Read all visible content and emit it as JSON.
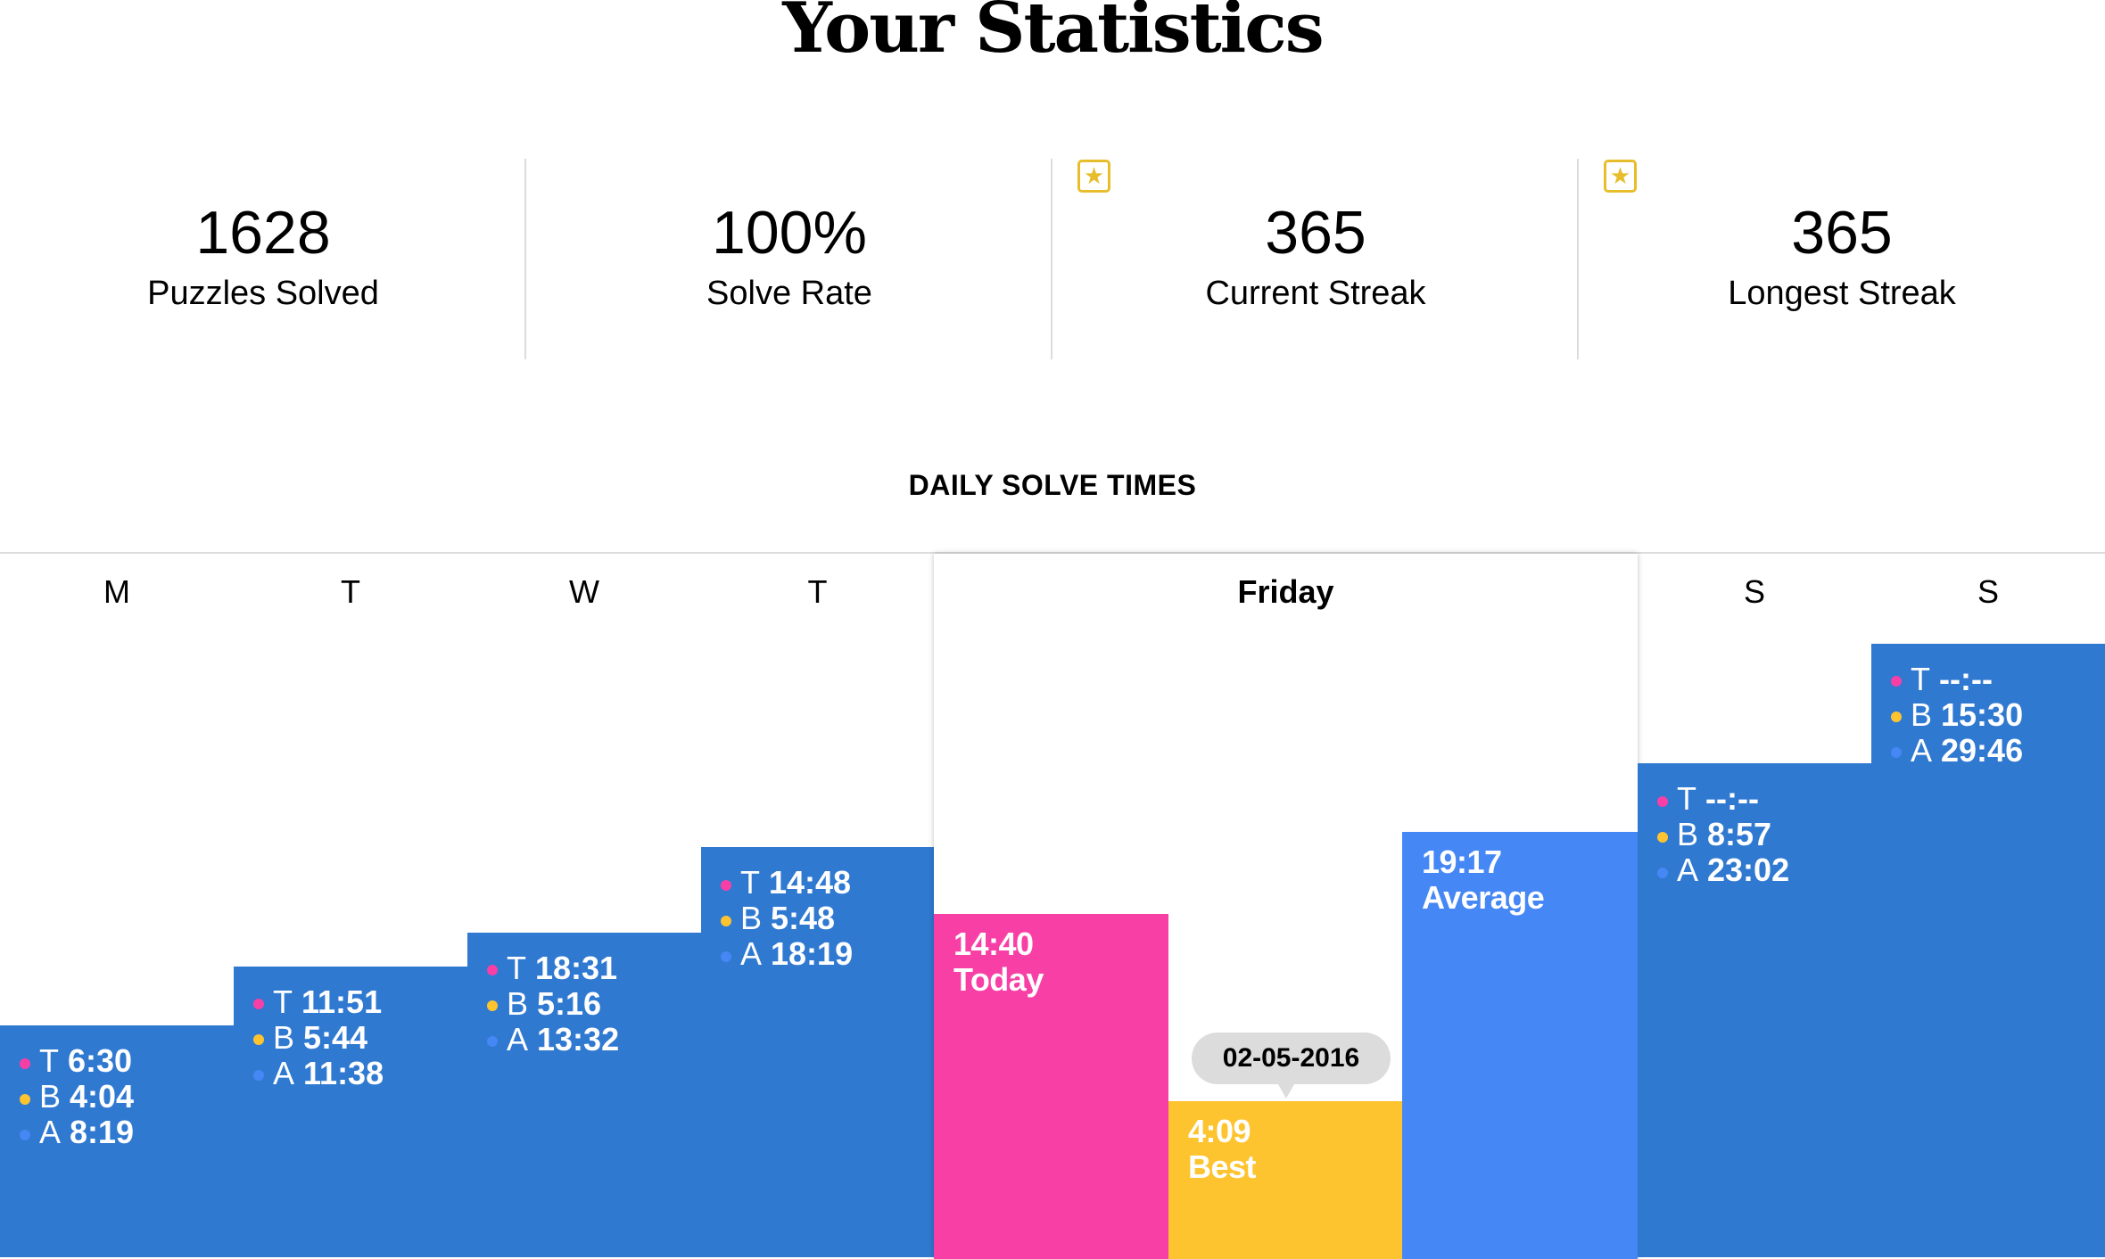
{
  "title": "Your Statistics",
  "stats": [
    {
      "value": "1628",
      "label": "Puzzles Solved",
      "star": false
    },
    {
      "value": "100%",
      "label": "Solve Rate",
      "star": false
    },
    {
      "value": "365",
      "label": "Current Streak",
      "star": true
    },
    {
      "value": "365",
      "label": "Longest Streak",
      "star": true
    }
  ],
  "star_icon": "star-badge-icon",
  "section_title": "DAILY SOLVE TIMES",
  "colors": {
    "bar": "#3079d1",
    "today": "#f83fa6",
    "best": "#fec430",
    "average": "#4587f4"
  },
  "chart_data": {
    "type": "bar",
    "days": [
      {
        "label": "M",
        "today": "6:30",
        "best": "4:04",
        "average": "8:19"
      },
      {
        "label": "T",
        "today": "11:51",
        "best": "5:44",
        "average": "11:38"
      },
      {
        "label": "W",
        "today": "18:31",
        "best": "5:16",
        "average": "13:32"
      },
      {
        "label": "T",
        "today": "14:48",
        "best": "5:48",
        "average": "18:19"
      },
      {
        "label": "Friday",
        "selected": true,
        "today": "14:40",
        "best": "4:09",
        "average": "19:17",
        "today_label": "Today",
        "best_label": "Best",
        "average_label": "Average",
        "best_date": "02-05-2016"
      },
      {
        "label": "S",
        "today": "--:--",
        "best": "8:57",
        "average": "23:02"
      },
      {
        "label": "S",
        "today": "--:--",
        "best": "15:30",
        "average": "29:46"
      }
    ],
    "keys": {
      "today": "T",
      "best": "B",
      "average": "A"
    }
  }
}
